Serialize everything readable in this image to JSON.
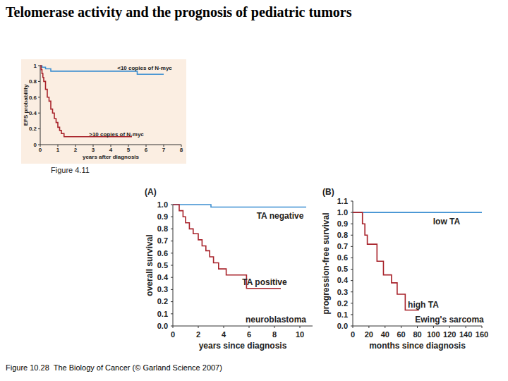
{
  "title": "Telomerase activity and the prognosis of pediatric tumors",
  "caption": "Figure 10.28  The Biology of Cancer (© Garland Science 2007)",
  "chart_data": [
    {
      "type": "line",
      "line_style": "step",
      "xlabel": "years after diagnosis",
      "ylabel": "EFS probability",
      "xlim": [
        0,
        8
      ],
      "ylim": [
        0,
        1
      ],
      "xticks": [
        0,
        1,
        2,
        3,
        4,
        5,
        6,
        7,
        8
      ],
      "yticks": [
        0,
        0.2,
        0.4,
        0.6,
        0.8,
        1
      ],
      "annotations": [
        "Figure 4.11"
      ],
      "series": [
        {
          "name": "<10 copies of N-myc",
          "color": "#3d8fd1",
          "x": [
            0,
            0.1,
            0.3,
            0.6,
            1,
            3,
            5.5,
            7
          ],
          "values": [
            1,
            0.98,
            0.96,
            0.93,
            0.93,
            0.93,
            0.89,
            0.89
          ]
        },
        {
          "name": ">10 copies of N-myc",
          "color": "#a8232b",
          "x": [
            0,
            0.05,
            0.1,
            0.15,
            0.2,
            0.3,
            0.4,
            0.5,
            0.6,
            0.7,
            0.8,
            0.9,
            1.0,
            1.1,
            1.2,
            1.35,
            2,
            3,
            4,
            5.2
          ],
          "values": [
            1,
            0.95,
            0.9,
            0.85,
            0.8,
            0.7,
            0.6,
            0.55,
            0.45,
            0.4,
            0.33,
            0.28,
            0.22,
            0.18,
            0.14,
            0.1,
            0.1,
            0.1,
            0.1,
            0.1
          ]
        }
      ]
    },
    {
      "type": "line",
      "line_style": "step",
      "xlabel": "years since diagnosis",
      "ylabel": "overall survival",
      "xlim": [
        0,
        11
      ],
      "ylim": [
        0,
        1
      ],
      "xticks": [
        0,
        2,
        4,
        6,
        8,
        10
      ],
      "yticks": [
        {
          "value": 0,
          "label": "0.0"
        },
        0.1,
        0.2,
        0.3,
        0.4,
        0.5,
        0.6,
        0.7,
        0.8,
        0.9,
        {
          "value": 1,
          "label": "1.0"
        }
      ],
      "annotations": [
        "(A)",
        "neuroblastoma"
      ],
      "series": [
        {
          "name": "TA negative",
          "color": "#3d8fd1",
          "x": [
            0,
            3,
            10.5
          ],
          "values": [
            1,
            0.98,
            0.98
          ]
        },
        {
          "name": "TA positive",
          "color": "#a8232b",
          "x": [
            0,
            0.5,
            0.8,
            1.0,
            1.3,
            1.6,
            2.0,
            2.3,
            2.6,
            2.9,
            3.2,
            3.6,
            4.2,
            5.8,
            8.5
          ],
          "values": [
            1,
            0.95,
            0.9,
            0.85,
            0.8,
            0.76,
            0.71,
            0.66,
            0.62,
            0.57,
            0.52,
            0.47,
            0.42,
            0.31,
            0.31
          ]
        }
      ]
    },
    {
      "type": "line",
      "line_style": "step",
      "xlabel": "months since diagnosis",
      "ylabel": "progression-free survival",
      "xlim": [
        0,
        160
      ],
      "ylim": [
        0,
        1.1
      ],
      "xticks": [
        0,
        20,
        40,
        60,
        80,
        100,
        120,
        140,
        160
      ],
      "yticks": [
        {
          "value": 0,
          "label": "0.0"
        },
        0.1,
        0.2,
        0.3,
        0.4,
        0.5,
        0.6,
        0.7,
        0.8,
        0.9,
        {
          "value": 1,
          "label": "1.0"
        },
        1.1
      ],
      "annotations": [
        "(B)",
        "Ewing's sarcoma"
      ],
      "series": [
        {
          "name": "low TA",
          "color": "#3d8fd1",
          "x": [
            0,
            160
          ],
          "values": [
            1,
            1
          ]
        },
        {
          "name": "high TA",
          "color": "#a8232b",
          "x": [
            0,
            12,
            15,
            18,
            30,
            38,
            48,
            55,
            65,
            82
          ],
          "values": [
            1,
            0.9,
            0.8,
            0.72,
            0.57,
            0.45,
            0.38,
            0.28,
            0.14,
            0.14
          ]
        }
      ]
    }
  ]
}
